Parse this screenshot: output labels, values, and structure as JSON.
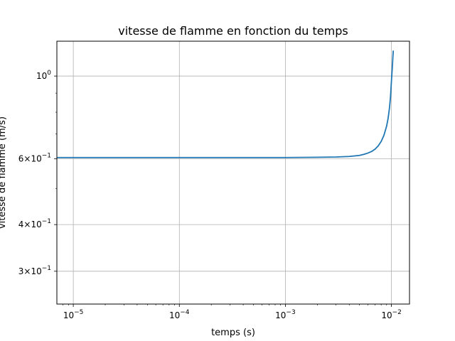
{
  "chart_data": {
    "type": "line",
    "title": "vitesse de flamme en fonction du temps",
    "xlabel": "temps (s)",
    "ylabel": "vitesse de flamme (m/s)",
    "xscale": "log",
    "yscale": "log",
    "xlim": [
      7e-06,
      0.0148
    ],
    "ylim": [
      0.245,
      1.24
    ],
    "grid": true,
    "x_ticks": [
      {
        "value": 1e-05,
        "base": "10",
        "exp": "−5"
      },
      {
        "value": 0.0001,
        "base": "10",
        "exp": "−4"
      },
      {
        "value": 0.001,
        "base": "10",
        "exp": "−3"
      },
      {
        "value": 0.01,
        "base": "10",
        "exp": "−2"
      }
    ],
    "y_ticks": [
      {
        "value": 1.0,
        "base": "10",
        "exp": "0",
        "mant": ""
      },
      {
        "value": 0.6,
        "base": "10",
        "exp": "−1",
        "mant": "6×"
      },
      {
        "value": 0.4,
        "base": "10",
        "exp": "−1",
        "mant": "4×"
      },
      {
        "value": 0.3,
        "base": "10",
        "exp": "−1",
        "mant": "3×"
      }
    ],
    "series": [
      {
        "color": "#1f77b4",
        "x": [
          7e-06,
          1e-05,
          3e-05,
          0.0001,
          0.0003,
          0.001,
          0.002,
          0.003,
          0.004,
          0.005,
          0.0055,
          0.006,
          0.0065,
          0.007,
          0.0075,
          0.008,
          0.0085,
          0.009,
          0.0093,
          0.0096,
          0.0098,
          0.01,
          0.0102,
          0.0104
        ],
        "y": [
          0.605,
          0.605,
          0.605,
          0.605,
          0.605,
          0.605,
          0.606,
          0.607,
          0.609,
          0.613,
          0.617,
          0.622,
          0.628,
          0.637,
          0.65,
          0.668,
          0.694,
          0.734,
          0.77,
          0.825,
          0.88,
          0.97,
          1.06,
          1.17
        ]
      }
    ]
  }
}
